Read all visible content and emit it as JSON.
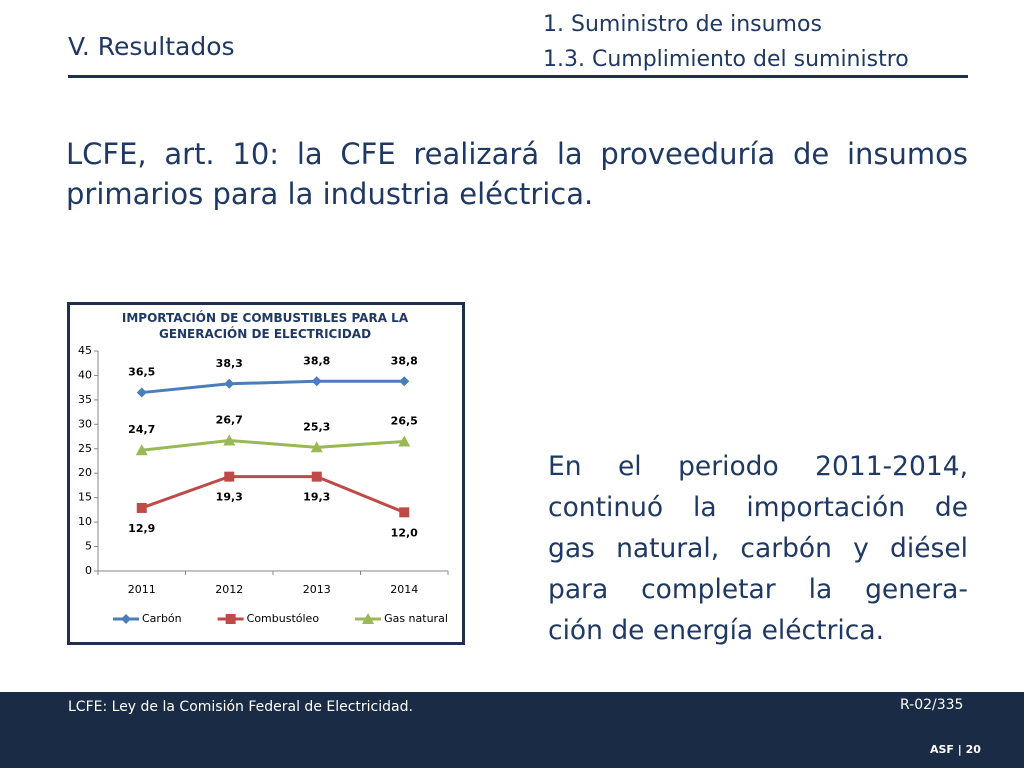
{
  "header": {
    "section": "V. Resultados",
    "topic": "1. Suministro de insumos",
    "subtopic": "1.3. Cumplimiento del suministro"
  },
  "intro_lines": [
    "LCFE, art. 10: la CFE realizará la proveeduría de insumos",
    "primarios para la industria eléctrica."
  ],
  "note_lines": [
    "En el periodo 2011-2014,",
    "continuó la importación de",
    "gas natural, carbón y diésel",
    "para completar la genera-",
    "ción de energía eléctrica."
  ],
  "chart_data": {
    "type": "line",
    "title": "IMPORTACIÓN DE COMBUSTIBLES PARA LA GENERACIÓN DE ELECTRICIDAD",
    "categories": [
      "2011",
      "2012",
      "2013",
      "2014"
    ],
    "series": [
      {
        "name": "Carbón",
        "color": "#4a7ebb",
        "marker": "diamond",
        "label_position": "above",
        "values": [
          36.5,
          38.3,
          38.8,
          38.8
        ],
        "value_labels": [
          "36,5",
          "38,3",
          "38,8",
          "38,8"
        ]
      },
      {
        "name": "Combustóleo",
        "color": "#be4b48",
        "marker": "square",
        "label_position": "below",
        "values": [
          12.9,
          19.3,
          19.3,
          12.0
        ],
        "value_labels": [
          "12,9",
          "19,3",
          "19,3",
          "12,0"
        ]
      },
      {
        "name": "Gas natural",
        "color": "#98b954",
        "marker": "triangle",
        "label_position": "above",
        "values": [
          24.7,
          26.7,
          25.3,
          26.5
        ],
        "value_labels": [
          "24,7",
          "26,7",
          "25,3",
          "26,5"
        ]
      }
    ],
    "ylim": [
      0,
      45
    ],
    "yticks": [
      0,
      5,
      10,
      15,
      20,
      25,
      30,
      35,
      40,
      45
    ],
    "grid": false,
    "legend": "bottom"
  },
  "footer": {
    "note": "LCFE: Ley de la Comisión Federal de Electricidad.",
    "reference": "R-02/335",
    "org": "ASF",
    "page": "20"
  }
}
